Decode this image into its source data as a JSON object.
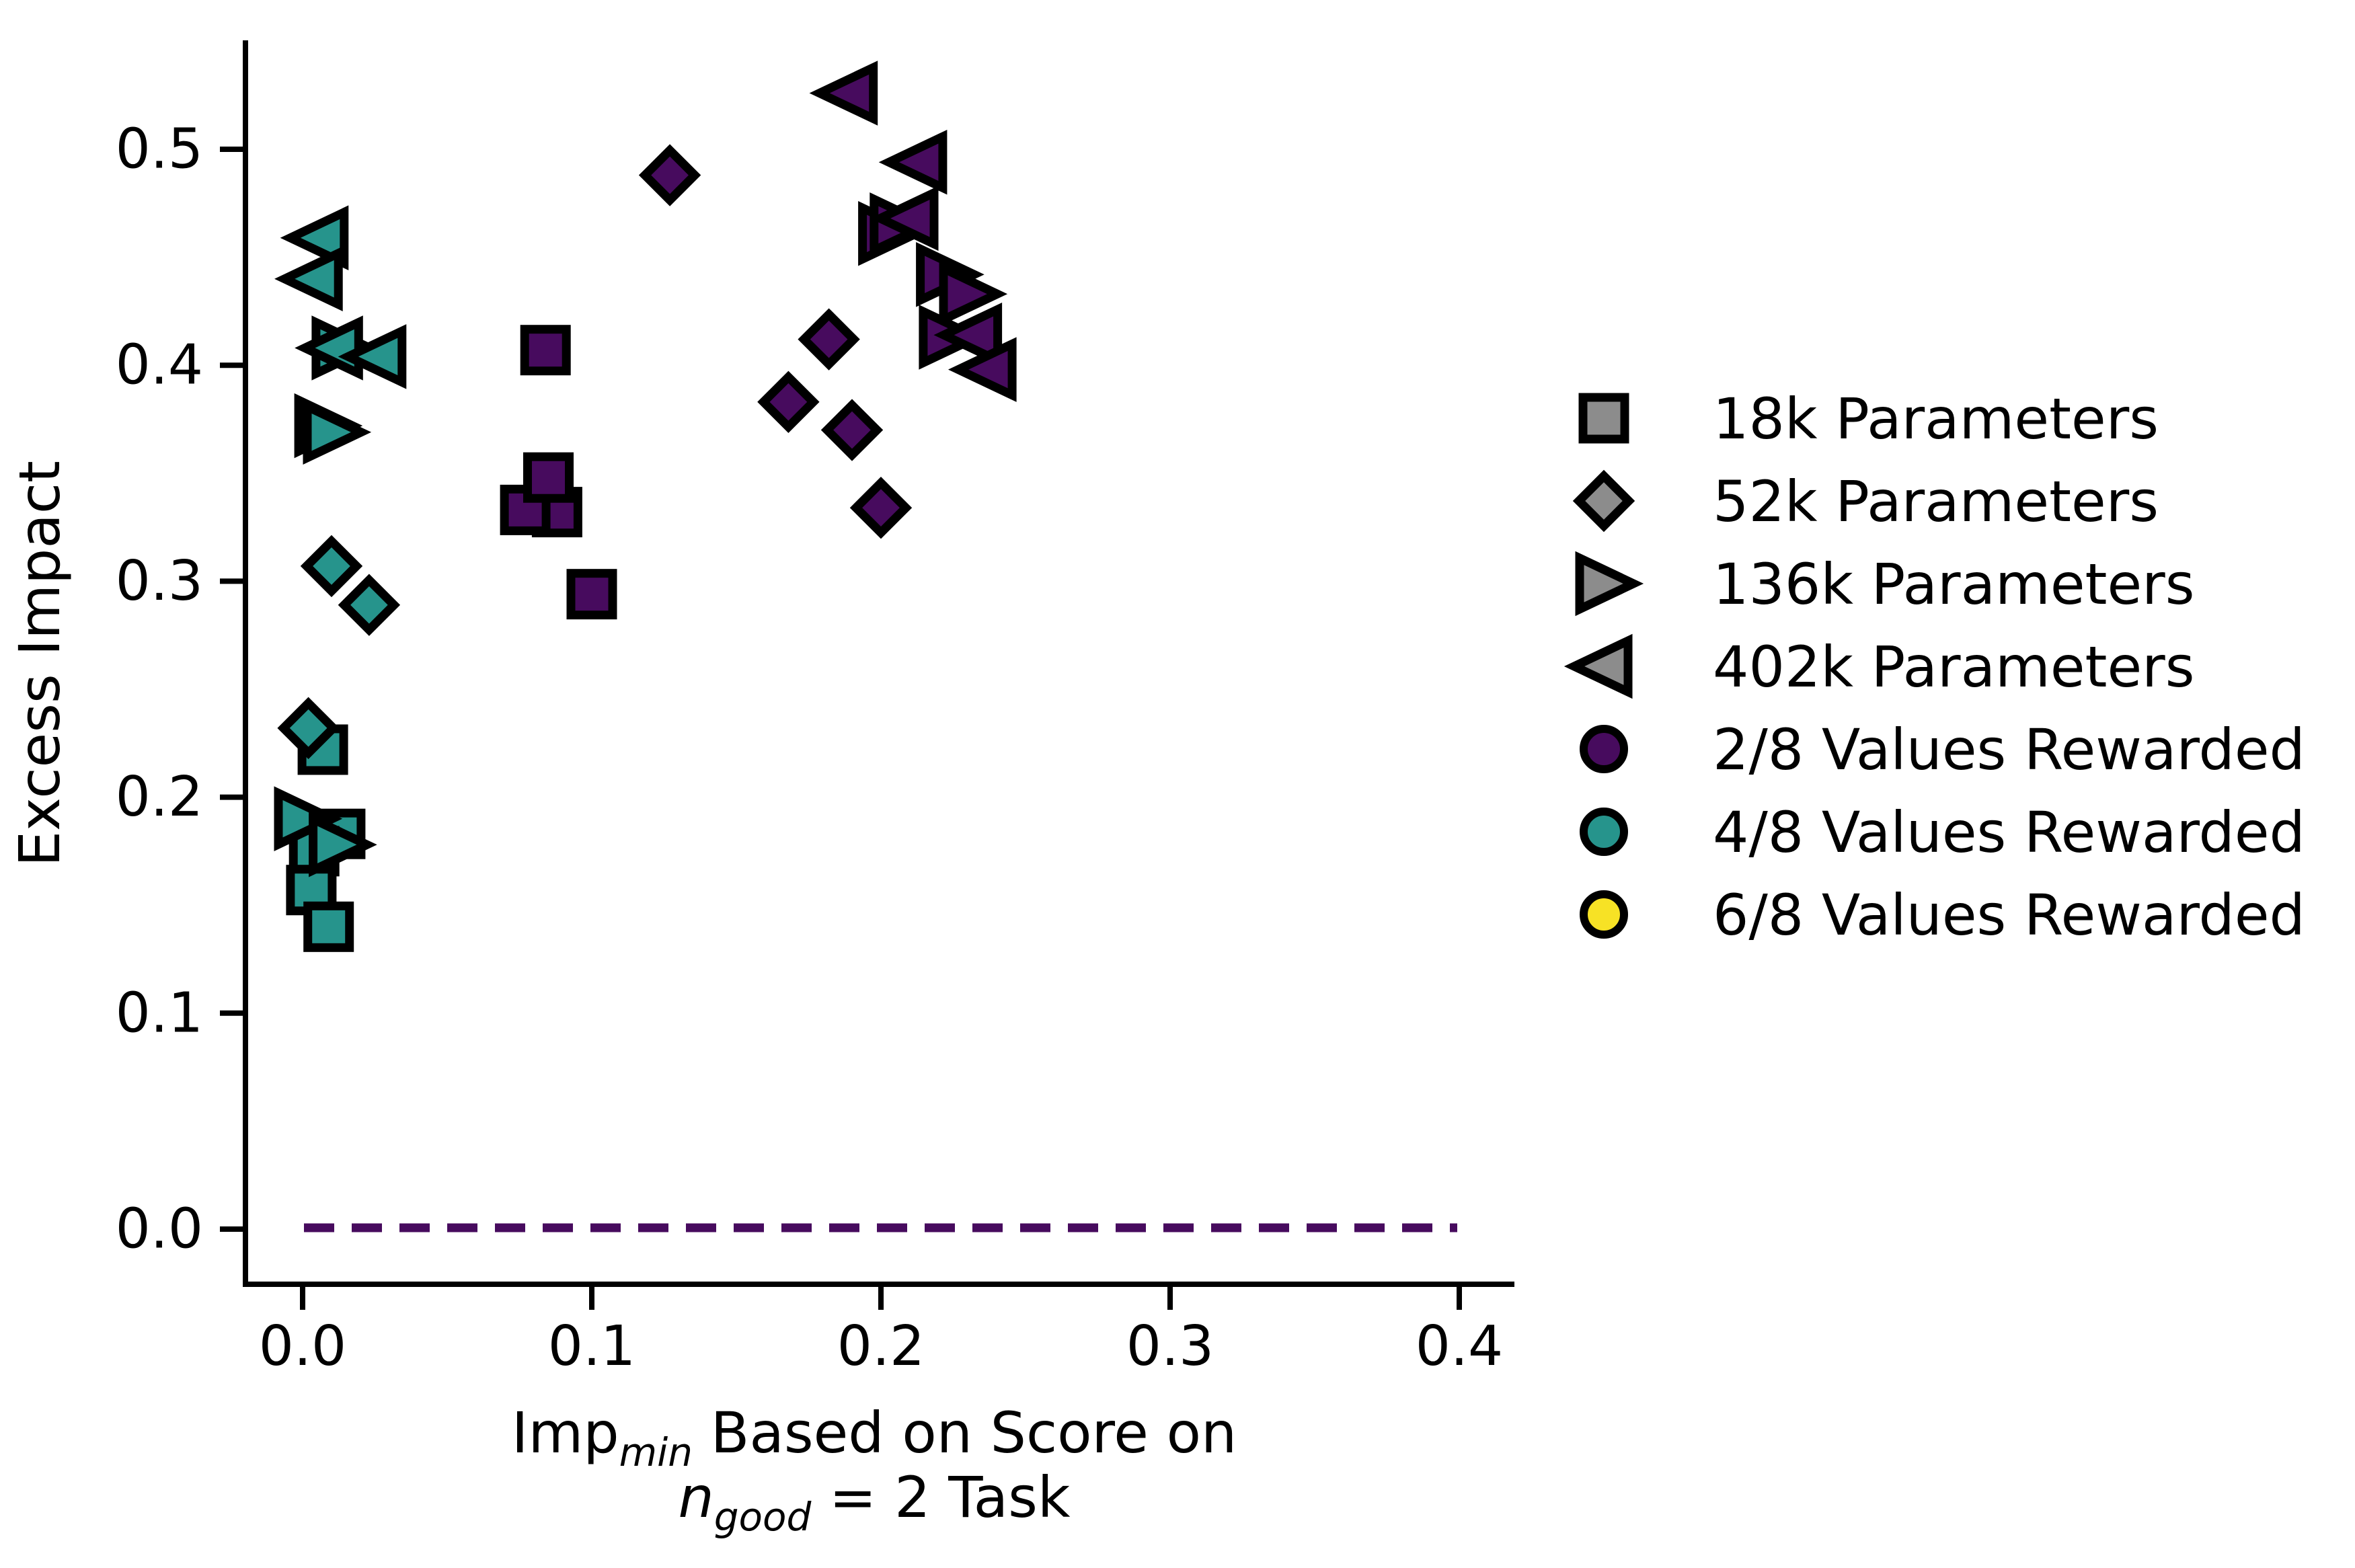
{
  "chart_data": {
    "type": "scatter",
    "title": "",
    "ylabel": "Excess Impact",
    "xlabel_line1": {
      "prefix": "Imp",
      "sub": "min",
      "rest": " Based on Score on"
    },
    "xlabel_line2": {
      "var": "n",
      "sub": "good",
      "rest": " = 2 Task"
    },
    "xlim": [
      -0.02,
      0.42
    ],
    "ylim": [
      -0.025,
      0.55
    ],
    "grid": false,
    "legend_position": "outside-right",
    "xticks": [
      {
        "v": 0.0,
        "label": "0.0"
      },
      {
        "v": 0.1,
        "label": "0.1"
      },
      {
        "v": 0.2,
        "label": "0.2"
      },
      {
        "v": 0.3,
        "label": "0.3"
      },
      {
        "v": 0.4,
        "label": "0.4"
      }
    ],
    "yticks": [
      {
        "v": 0.0,
        "label": "0.0"
      },
      {
        "v": 0.1,
        "label": "0.1"
      },
      {
        "v": 0.2,
        "label": "0.2"
      },
      {
        "v": 0.3,
        "label": "0.3"
      },
      {
        "v": 0.4,
        "label": "0.4"
      },
      {
        "v": 0.5,
        "label": "0.5"
      }
    ],
    "reference_line": {
      "y": 0.0,
      "style": "dashed",
      "color": "#470b5e"
    },
    "colors": {
      "purple_2of8": "#470b5e",
      "teal_4of8": "#26948c",
      "yellow_6of8": "#f7e225",
      "legend_gray": "#8c8c8c",
      "edge": "#000000"
    },
    "series": [
      {
        "name": "18k Parameters / 2-8 Values Rewarded",
        "shape": "square",
        "color": "#470b5e",
        "points": [
          [
            0.088,
            0.332
          ],
          [
            0.077,
            0.333
          ],
          [
            0.085,
            0.348
          ],
          [
            0.084,
            0.407
          ],
          [
            0.1,
            0.294
          ]
        ]
      },
      {
        "name": "18k Parameters / 4-8 Values Rewarded",
        "shape": "square",
        "color": "#26948c",
        "points": [
          [
            0.013,
            0.183
          ],
          [
            0.004,
            0.175
          ],
          [
            0.003,
            0.157
          ],
          [
            0.009,
            0.14
          ],
          [
            0.007,
            0.222
          ]
        ]
      },
      {
        "name": "52k Parameters / 2-8 Values Rewarded",
        "shape": "diamond",
        "color": "#470b5e",
        "points": [
          [
            0.127,
            0.488
          ],
          [
            0.182,
            0.412
          ],
          [
            0.168,
            0.383
          ],
          [
            0.19,
            0.37
          ],
          [
            0.2,
            0.334
          ]
        ]
      },
      {
        "name": "52k Parameters / 4-8 Values Rewarded",
        "shape": "diamond",
        "color": "#26948c",
        "points": [
          [
            0.01,
            0.307
          ],
          [
            0.023,
            0.289
          ],
          [
            0.002,
            0.232
          ]
        ]
      },
      {
        "name": "136k Parameters / 2-8 Values Rewarded",
        "shape": "triangle-right",
        "color": "#470b5e",
        "points": [
          [
            0.202,
            0.461
          ],
          [
            0.206,
            0.465
          ],
          [
            0.222,
            0.442
          ],
          [
            0.23,
            0.433
          ],
          [
            0.223,
            0.413
          ]
        ]
      },
      {
        "name": "136k Parameters / 4-8 Values Rewarded",
        "shape": "triangle-right",
        "color": "#26948c",
        "points": [
          [
            0.013,
            0.408
          ],
          [
            0.007,
            0.372
          ],
          [
            0.01,
            0.369
          ],
          [
            0.0,
            0.19
          ],
          [
            0.012,
            0.178
          ]
        ]
      },
      {
        "name": "402k Parameters / 2-8 Values Rewarded",
        "shape": "triangle-left",
        "color": "#470b5e",
        "points": [
          [
            0.189,
            0.526
          ],
          [
            0.213,
            0.494
          ],
          [
            0.21,
            0.468
          ],
          [
            0.232,
            0.414
          ],
          [
            0.237,
            0.398
          ]
        ]
      },
      {
        "name": "402k Parameters / 4-8 Values Rewarded",
        "shape": "triangle-left",
        "color": "#26948c",
        "points": [
          [
            0.006,
            0.459
          ],
          [
            0.004,
            0.44
          ],
          [
            0.011,
            0.408
          ],
          [
            0.026,
            0.404
          ]
        ]
      }
    ],
    "legend": [
      {
        "label": "18k Parameters",
        "shape": "square",
        "color": "#8c8c8c"
      },
      {
        "label": "52k Parameters",
        "shape": "diamond",
        "color": "#8c8c8c"
      },
      {
        "label": "136k Parameters",
        "shape": "triangle-right",
        "color": "#8c8c8c"
      },
      {
        "label": "402k Parameters",
        "shape": "triangle-left",
        "color": "#8c8c8c"
      },
      {
        "label": "2/8 Values Rewarded",
        "shape": "circle",
        "color": "#470b5e"
      },
      {
        "label": "4/8 Values Rewarded",
        "shape": "circle",
        "color": "#26948c"
      },
      {
        "label": "6/8 Values Rewarded",
        "shape": "circle",
        "color": "#f7e225"
      }
    ]
  }
}
